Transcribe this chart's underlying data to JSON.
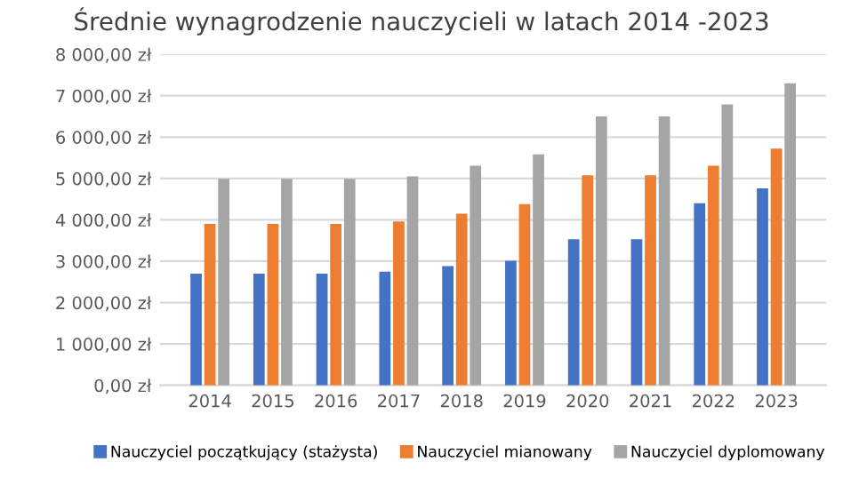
{
  "chart_data": {
    "type": "bar",
    "title": "Średnie wynagrodzenie nauczycieli w latach 2014 -2023",
    "categories": [
      "2014",
      "2015",
      "2016",
      "2017",
      "2018",
      "2019",
      "2020",
      "2021",
      "2022",
      "2023"
    ],
    "series": [
      {
        "name": "Nauczyciel początkujący (stażysta)",
        "color": "#4472c4",
        "values": [
          2700,
          2700,
          2700,
          2750,
          2880,
          3010,
          3530,
          3530,
          4400,
          4760
        ]
      },
      {
        "name": "Nauczyciel mianowany",
        "color": "#ed7d31",
        "values": [
          3900,
          3900,
          3900,
          3960,
          4150,
          4380,
          5080,
          5080,
          5310,
          5720
        ]
      },
      {
        "name": "Nauczyciel dyplomowany",
        "color": "#a5a5a5",
        "values": [
          4990,
          4990,
          4990,
          5050,
          5310,
          5580,
          6500,
          6500,
          6790,
          7300
        ]
      }
    ],
    "ylim": [
      0,
      8000
    ],
    "yticks": [
      {
        "value": 0,
        "label": "0,00 zł"
      },
      {
        "value": 1000,
        "label": "1 000,00 zł"
      },
      {
        "value": 2000,
        "label": "2 000,00 zł"
      },
      {
        "value": 3000,
        "label": "3 000,00 zł"
      },
      {
        "value": 4000,
        "label": "4 000,00 zł"
      },
      {
        "value": 5000,
        "label": "5 000,00 zł"
      },
      {
        "value": 6000,
        "label": "6 000,00 zł"
      },
      {
        "value": 7000,
        "label": "7 000,00 zł"
      },
      {
        "value": 8000,
        "label": "8 000,00 zł"
      }
    ],
    "grid": "y",
    "legend": "bottom"
  }
}
